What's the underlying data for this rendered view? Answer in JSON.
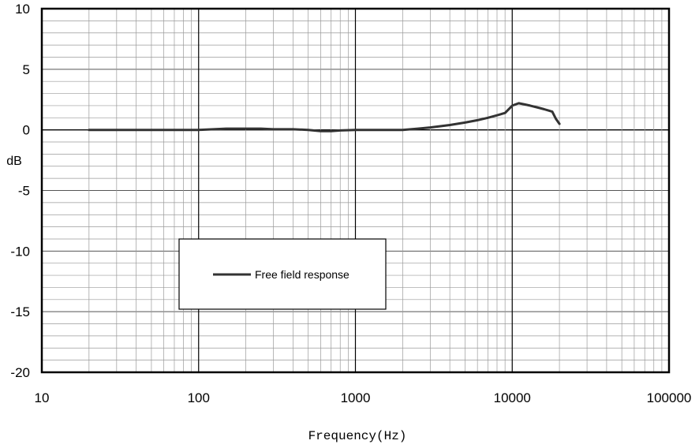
{
  "chart_data": {
    "type": "line",
    "xlabel": "Frequency(Hz)",
    "ylabel": "dB",
    "x_scale": "log",
    "xlim": [
      10,
      100000
    ],
    "ylim": [
      -20,
      10
    ],
    "grid": true,
    "x_tick_labels": [
      "10",
      "100",
      "1000",
      "10000",
      "100000"
    ],
    "y_tick_labels": [
      "10",
      "5",
      "0",
      "-5",
      "-10",
      "-15",
      "-20"
    ],
    "legend_position": "lower-left-center",
    "series": [
      {
        "name": "Free field response",
        "color": "#333333",
        "x": [
          20,
          50,
          100,
          150,
          200,
          250,
          300,
          400,
          500,
          600,
          700,
          800,
          1000,
          1500,
          2000,
          2500,
          3000,
          4000,
          5000,
          6000,
          7000,
          8000,
          9000,
          10000,
          11000,
          12000,
          13000,
          14000,
          15000,
          16000,
          17000,
          18000,
          19000,
          20000
        ],
        "y": [
          0,
          0,
          0,
          0.1,
          0.1,
          0.1,
          0.05,
          0.05,
          0,
          -0.1,
          -0.1,
          -0.05,
          0,
          0,
          0,
          0.1,
          0.2,
          0.4,
          0.6,
          0.8,
          1.0,
          1.2,
          1.4,
          2.0,
          2.2,
          2.1,
          2.0,
          1.9,
          1.8,
          1.7,
          1.6,
          1.5,
          0.9,
          0.5
        ]
      }
    ]
  }
}
